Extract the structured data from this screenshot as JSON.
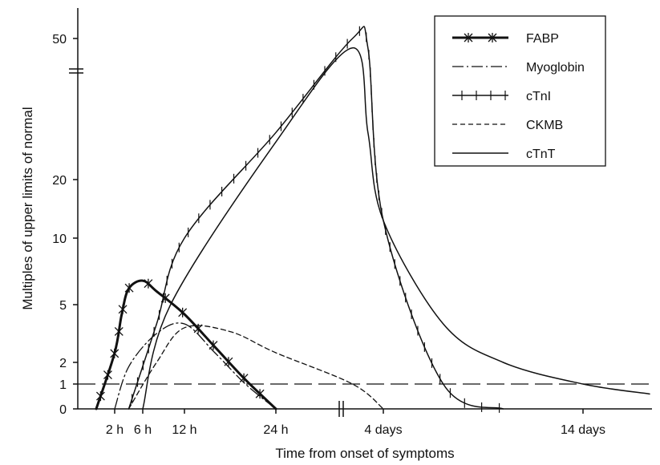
{
  "chart_data": {
    "type": "line",
    "title": "",
    "xlabel": "Time from onset of symptoms",
    "ylabel": "Multiples of upper limits of normal",
    "y_scale": "nonlinear (axis break between 20 and 50)",
    "y_ticks": [
      0,
      1,
      2,
      5,
      10,
      20,
      50
    ],
    "y_tick_labels": [
      "0",
      "1",
      "2",
      "5",
      "10",
      "20",
      "50"
    ],
    "x_ticks": [
      "2 h",
      "6 h",
      "12 h",
      "24 h",
      "4 days",
      "14 days"
    ],
    "x_axis_break": "between 24 h and 4 days",
    "legend_position": "top-right",
    "reference_line": {
      "y": 1,
      "style": "dashed"
    },
    "series": [
      {
        "name": "FABP",
        "marker": "asterisk",
        "style": "thick-solid",
        "points": [
          [
            "1 h",
            0
          ],
          [
            "2 h",
            2.5
          ],
          [
            "3 h",
            4.5
          ],
          [
            "4 h",
            6.2
          ],
          [
            "6 h",
            6.8
          ],
          [
            "8 h",
            6
          ],
          [
            "12 h",
            4.5
          ],
          [
            "16 h",
            2.8
          ],
          [
            "20 h",
            1.2
          ],
          [
            "24 h",
            0
          ]
        ],
        "peak": 6.8
      },
      {
        "name": "Myoglobin",
        "marker": "none",
        "style": "dash-dot",
        "points": [
          [
            "2 h",
            0
          ],
          [
            "4 h",
            1.8
          ],
          [
            "8 h",
            3.5
          ],
          [
            "12 h",
            4
          ],
          [
            "16 h",
            2.5
          ],
          [
            "20 h",
            1
          ],
          [
            "24 h",
            0
          ]
        ],
        "peak": 4
      },
      {
        "name": "cTnI",
        "marker": "vertical-tick",
        "style": "solid",
        "points": [
          [
            "4 h",
            0
          ],
          [
            "8 h",
            4
          ],
          [
            "12 h",
            10
          ],
          [
            "24 h",
            30
          ],
          [
            "2 days",
            50
          ],
          [
            "3 days",
            48
          ],
          [
            "4 days",
            13
          ],
          [
            "7 days",
            1
          ],
          [
            "10 days",
            0
          ]
        ],
        "peak": 52
      },
      {
        "name": "CKMB",
        "marker": "none",
        "style": "dashed",
        "points": [
          [
            "4 h",
            0
          ],
          [
            "8 h",
            2
          ],
          [
            "12 h",
            3.8
          ],
          [
            "18 h",
            3.6
          ],
          [
            "24 h",
            2.5
          ],
          [
            "2 days",
            1
          ],
          [
            "4 days",
            0
          ]
        ],
        "peak": 4
      },
      {
        "name": "cTnT",
        "marker": "none",
        "style": "solid",
        "points": [
          [
            "6 h",
            0
          ],
          [
            "10 h",
            5
          ],
          [
            "24 h",
            28
          ],
          [
            "2 days",
            48
          ],
          [
            "3 days",
            30
          ],
          [
            "4 days",
            13
          ],
          [
            "7 days",
            4
          ],
          [
            "10 days",
            2
          ],
          [
            "14 days",
            1
          ],
          [
            "16 days",
            0.6
          ]
        ],
        "peak": 48
      }
    ]
  }
}
